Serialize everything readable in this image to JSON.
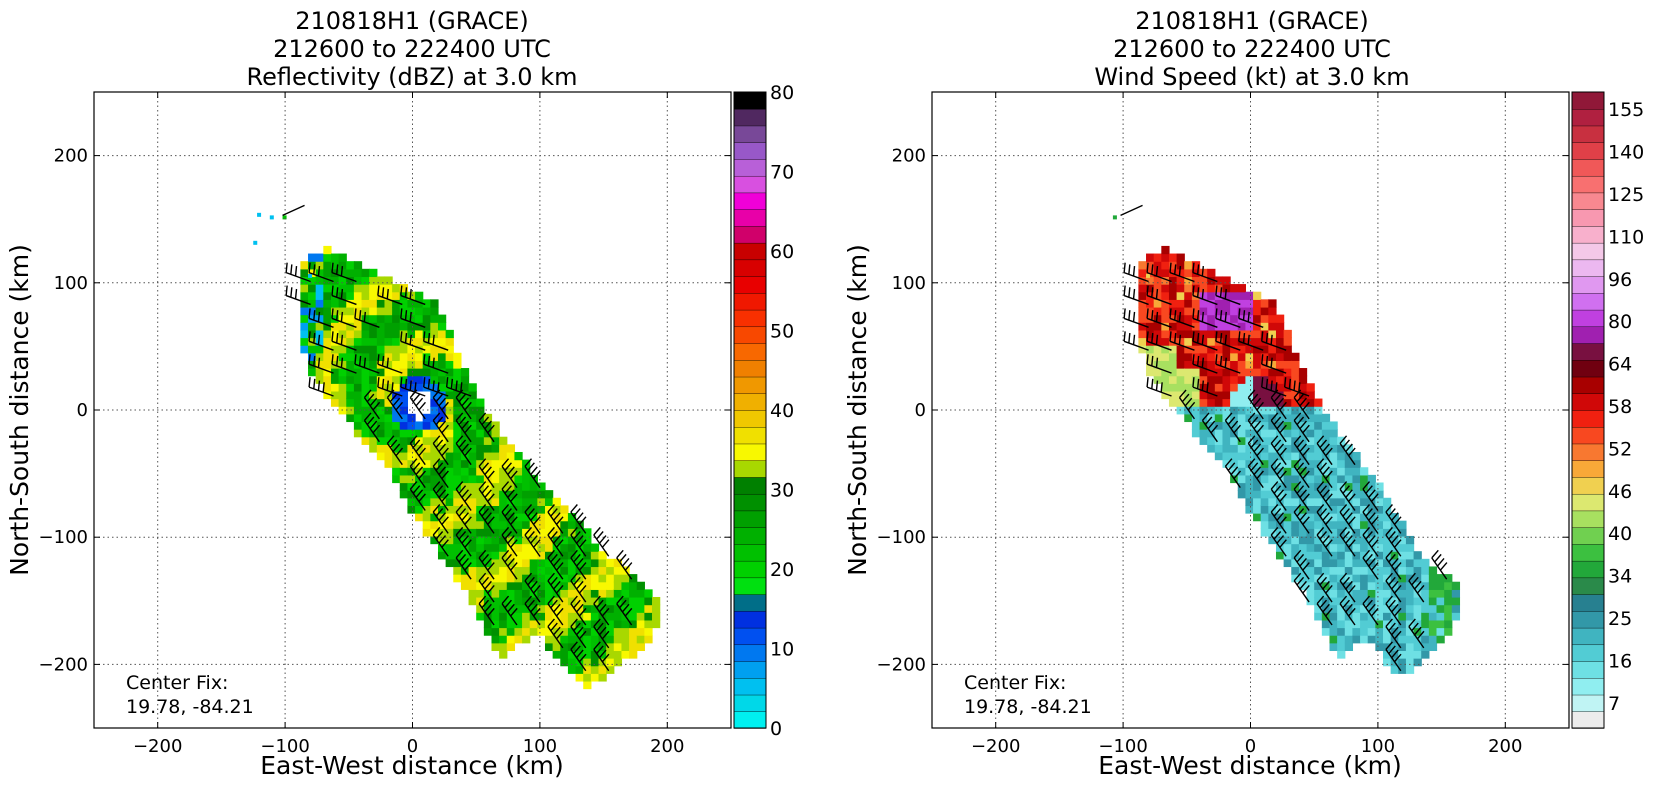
{
  "chart_data": [
    {
      "type": "heatmap",
      "title": [
        "210818H1 (GRACE)",
        "212600 to 222400 UTC",
        "Reflectivity (dBZ) at 3.0 km"
      ],
      "xlabel": "East-West distance (km)",
      "ylabel": "North-South distance (km)",
      "xlim": [
        -250,
        250
      ],
      "ylim": [
        -250,
        250
      ],
      "xticks": [
        -200,
        -100,
        0,
        100,
        200
      ],
      "yticks": [
        -200,
        -100,
        0,
        100,
        200
      ],
      "grid": true,
      "annotation": [
        "Center Fix:",
        "19.78, -84.21"
      ],
      "colorbar": {
        "min": 0,
        "max": 80,
        "ticks": [
          0,
          10,
          20,
          30,
          40,
          50,
          60,
          70,
          80
        ],
        "colors": [
          "#00f0f0",
          "#00d8e8",
          "#00c0f0",
          "#00a0f0",
          "#0078f0",
          "#0050f0",
          "#0030e0",
          "#006e88",
          "#00e010",
          "#00d000",
          "#00c000",
          "#00b000",
          "#00a000",
          "#009000",
          "#008000",
          "#a8d800",
          "#f8f800",
          "#f0e000",
          "#f0c800",
          "#f0b000",
          "#f09800",
          "#f08000",
          "#f86800",
          "#f84800",
          "#f83000",
          "#f01800",
          "#e80000",
          "#d80000",
          "#c80000",
          "#d0006a",
          "#e800a8",
          "#f000d8",
          "#d850e0",
          "#b860d8",
          "#9858c8",
          "#784898",
          "#502860",
          "#000000"
        ]
      },
      "data_extent_note": "Radar coverage swath oriented NW-SE from about (-85, 120) to (195, -215) km",
      "barbs": true
    },
    {
      "type": "heatmap",
      "title": [
        "210818H1 (GRACE)",
        "212600 to 222400 UTC",
        "Wind Speed (kt) at 3.0 km"
      ],
      "xlabel": "East-West distance (km)",
      "ylabel": "North-South distance (km)",
      "xlim": [
        -250,
        250
      ],
      "ylim": [
        -250,
        250
      ],
      "xticks": [
        -200,
        -100,
        0,
        100,
        200
      ],
      "yticks": [
        -200,
        -100,
        0,
        100,
        200
      ],
      "grid": true,
      "annotation": [
        "Center Fix:",
        "19.78, -84.21"
      ],
      "colorbar": {
        "tick_labels": [
          "7",
          "16",
          "25",
          "34",
          "40",
          "46",
          "52",
          "58",
          "64",
          "80",
          "96",
          "110",
          "125",
          "140",
          "155"
        ],
        "colors": [
          "#ececec",
          "#c0f4f4",
          "#90eef0",
          "#6ee0e4",
          "#52ccd4",
          "#40b4c0",
          "#3298a8",
          "#278090",
          "#2a8a4a",
          "#22a83a",
          "#3cc040",
          "#70d050",
          "#a8e060",
          "#dce870",
          "#f0d050",
          "#f8a838",
          "#f87830",
          "#f84820",
          "#f02010",
          "#d00808",
          "#a80000",
          "#700010",
          "#781040",
          "#a020b0",
          "#c040e0",
          "#d070f0",
          "#e098f0",
          "#ecb8f0",
          "#f4c8e8",
          "#f8b0cc",
          "#f898b0",
          "#f88890",
          "#f87070",
          "#f05858",
          "#e04048",
          "#c83040",
          "#b02040",
          "#901838"
        ]
      },
      "data_extent_note": "Radar coverage swath oriented NW-SE from about (-85, 120) to (165, -205) km",
      "barbs": true
    }
  ]
}
